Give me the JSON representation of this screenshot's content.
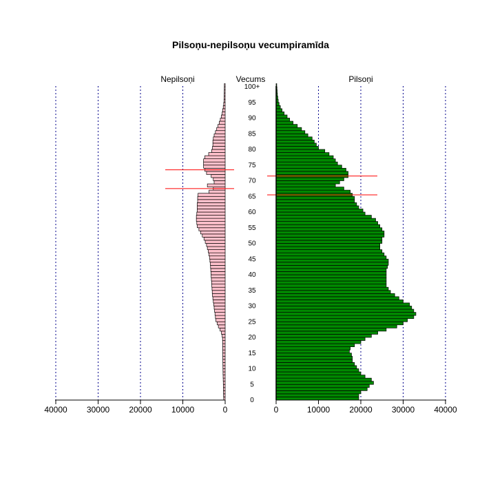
{
  "chart_data": {
    "type": "bar",
    "title": "Pilsoņu-nepilsoņu vecumpiramīda",
    "age_axis_label": "Vecums",
    "age_tick_labels": [
      "0",
      "5",
      "10",
      "15",
      "20",
      "25",
      "30",
      "35",
      "40",
      "45",
      "50",
      "55",
      "60",
      "65",
      "70",
      "75",
      "80",
      "85",
      "90",
      "95",
      "100+"
    ],
    "x_tick_labels_left": [
      "40000",
      "30000",
      "20000",
      "10000",
      "0"
    ],
    "x_tick_labels_right": [
      "0",
      "10000",
      "20000",
      "30000",
      "40000"
    ],
    "xlim": [
      0,
      40000
    ],
    "grid": true,
    "series": [
      {
        "name": "Nepilsoņi",
        "side": "left",
        "fill": "#ffc0cb",
        "values": [
          350,
          380,
          400,
          420,
          430,
          440,
          460,
          480,
          500,
          510,
          520,
          530,
          540,
          550,
          560,
          570,
          580,
          590,
          600,
          620,
          700,
          900,
          1200,
          1600,
          1900,
          2200,
          2300,
          2400,
          2500,
          2600,
          2700,
          2800,
          2900,
          3000,
          3050,
          3100,
          3150,
          3200,
          3250,
          3300,
          3350,
          3400,
          3450,
          3500,
          3600,
          3700,
          3850,
          4000,
          4200,
          4400,
          4700,
          5000,
          5400,
          5800,
          6200,
          6600,
          6700,
          6800,
          6800,
          6700,
          6600,
          6600,
          6600,
          6500,
          6500,
          6400,
          3800,
          2800,
          4200,
          2600,
          2800,
          3300,
          4400,
          4800,
          5100,
          5100,
          5100,
          4800,
          3900,
          3200,
          3000,
          2900,
          2900,
          2800,
          2600,
          2300,
          2000,
          1700,
          1400,
          1150,
          900,
          700,
          600,
          450,
          350,
          280,
          250,
          230,
          210,
          200,
          190
        ]
      },
      {
        "name": "Pilsoņi",
        "side": "right",
        "fill": "#008800",
        "values": [
          19500,
          19500,
          20000,
          21500,
          22000,
          23000,
          22500,
          21000,
          20000,
          19500,
          19000,
          18500,
          18000,
          18000,
          17800,
          17300,
          17500,
          18500,
          20000,
          21000,
          22500,
          24000,
          26000,
          28500,
          30000,
          31000,
          32500,
          33000,
          32500,
          32000,
          31500,
          30000,
          29000,
          28000,
          27000,
          26500,
          26000,
          26000,
          26000,
          26000,
          26000,
          26000,
          26300,
          26500,
          26500,
          26000,
          25500,
          25000,
          24500,
          24500,
          25000,
          25000,
          25500,
          25500,
          25000,
          24500,
          24000,
          23500,
          22500,
          21000,
          20500,
          19500,
          19000,
          18500,
          18500,
          18000,
          17500,
          16000,
          14000,
          15000,
          16000,
          17000,
          17000,
          16500,
          15500,
          14500,
          14000,
          13500,
          12500,
          11500,
          10000,
          9500,
          9000,
          8500,
          7500,
          6800,
          6000,
          5000,
          4000,
          3200,
          2600,
          1900,
          1400,
          1000,
          700,
          500,
          400,
          300,
          250,
          200,
          150
        ]
      }
    ],
    "reference_lines": [
      {
        "side": "left",
        "ages": [
          67,
          73
        ]
      },
      {
        "side": "right",
        "ages": [
          65,
          71
        ]
      }
    ],
    "reference_line_color": "#ff0000",
    "grid_color": "#00008b"
  }
}
